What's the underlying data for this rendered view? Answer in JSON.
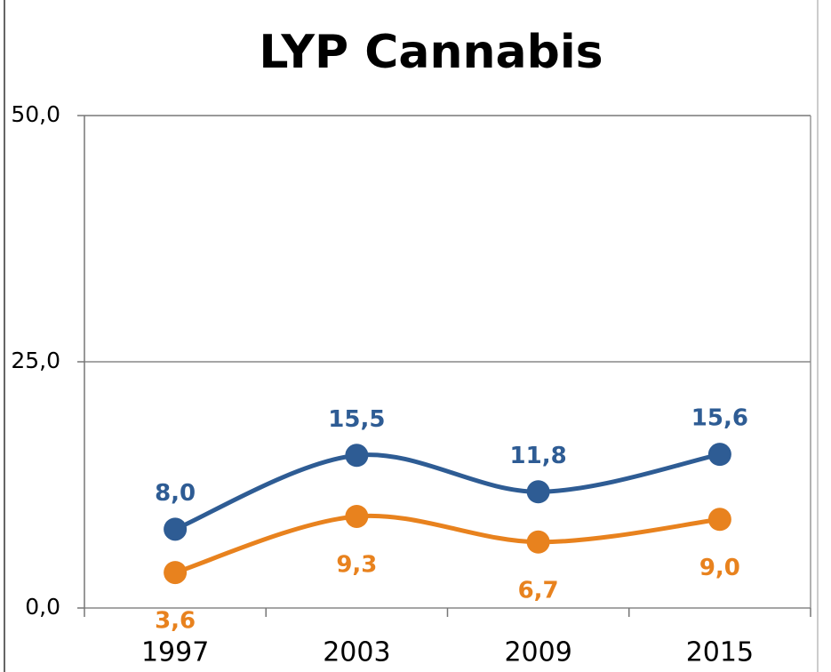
{
  "chart_data": {
    "type": "line",
    "title": "LYP Cannabis",
    "categories": [
      "1997",
      "2003",
      "2009",
      "2015"
    ],
    "series": [
      {
        "color": "#2e5c94",
        "values": [
          8.0,
          15.5,
          11.8,
          15.6
        ],
        "value_labels": [
          "8,0",
          "15,5",
          "11,8",
          "15,6"
        ]
      },
      {
        "color": "#e8821e",
        "values": [
          3.6,
          9.3,
          6.7,
          9.0
        ],
        "value_labels": [
          "3,6",
          "9,3",
          "6,7",
          "9,0"
        ]
      }
    ],
    "ylim": [
      0,
      50
    ],
    "yticks": [
      {
        "value": 0,
        "label": "0,0"
      },
      {
        "value": 25,
        "label": "25,0"
      },
      {
        "value": 50,
        "label": "50,0"
      }
    ],
    "grid": true
  }
}
